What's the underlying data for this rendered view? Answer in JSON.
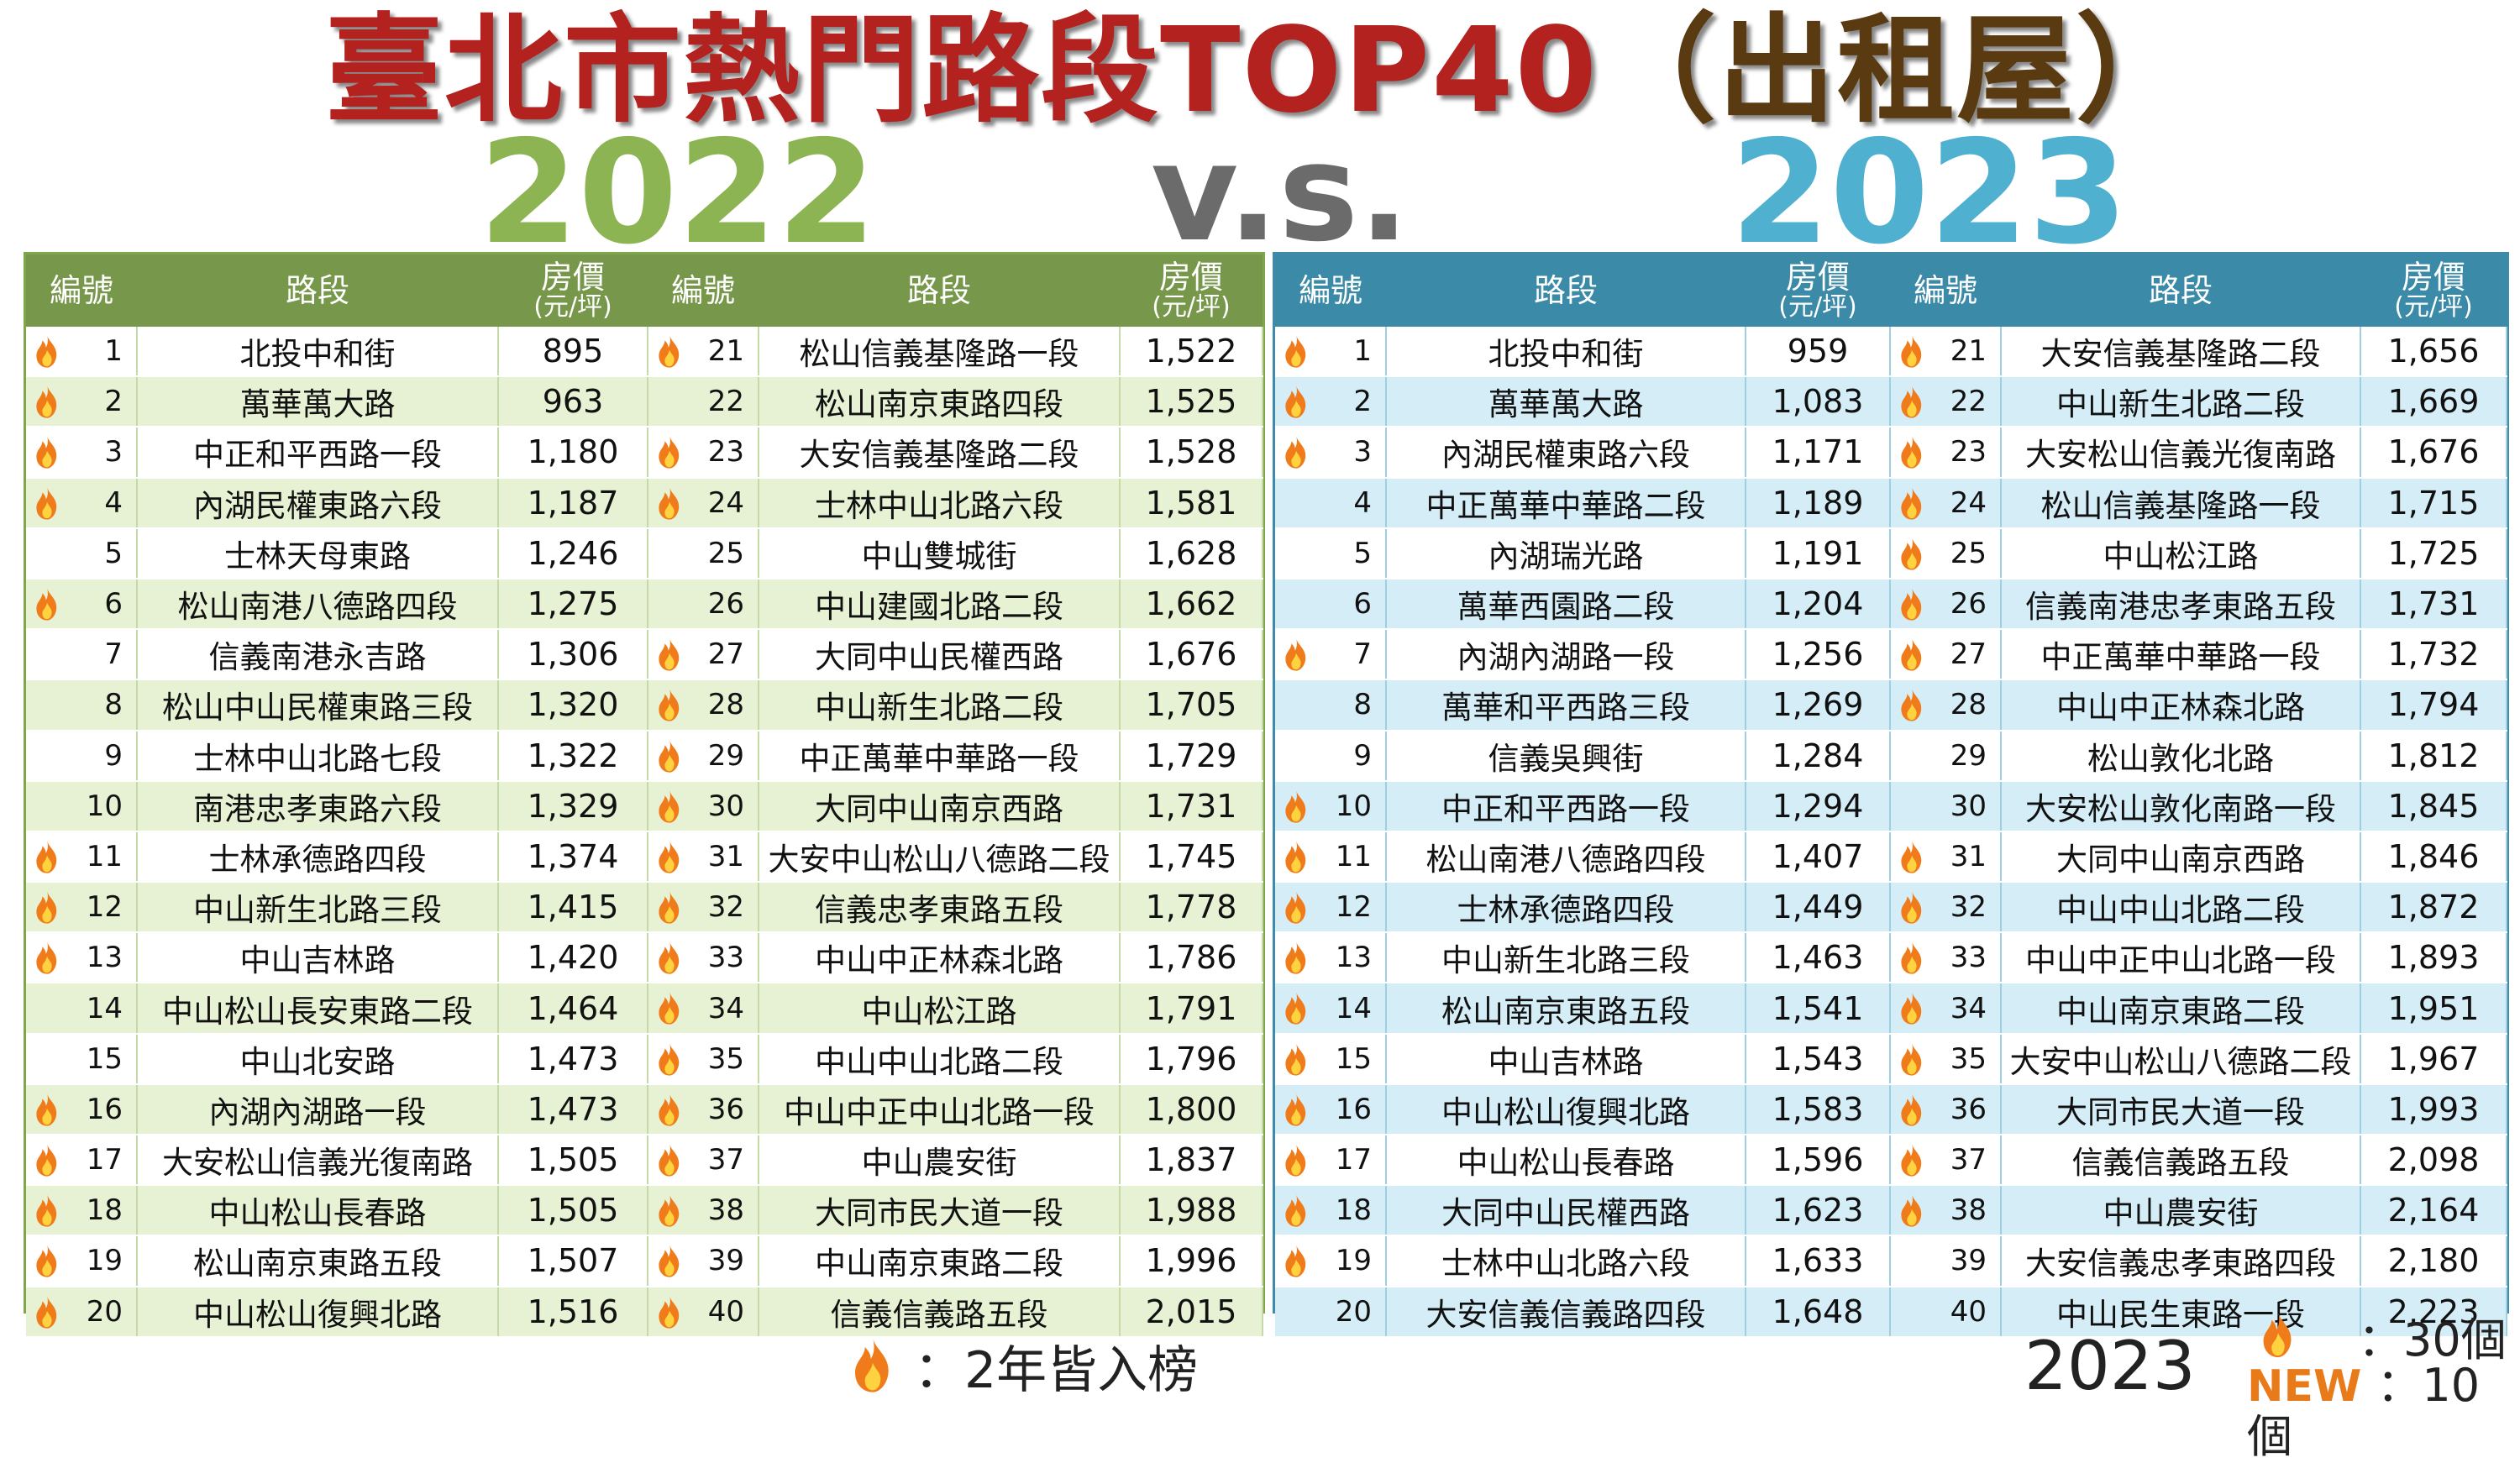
{
  "title": {
    "part1": "臺北市熱門路段TOP40",
    "part2": "（出租屋）"
  },
  "year_left": "2022",
  "vs": "v.s.",
  "year_right": "2023",
  "headers": {
    "id": "編號",
    "road": "路段",
    "price": "房價",
    "price_unit": "(元/坪)"
  },
  "table2022": [
    {
      "n": "1",
      "road": "北投中和街",
      "price": "895",
      "fire": true
    },
    {
      "n": "2",
      "road": "萬華萬大路",
      "price": "963",
      "fire": true
    },
    {
      "n": "3",
      "road": "中正和平西路一段",
      "price": "1,180",
      "fire": true
    },
    {
      "n": "4",
      "road": "內湖民權東路六段",
      "price": "1,187",
      "fire": true
    },
    {
      "n": "5",
      "road": "士林天母東路",
      "price": "1,246",
      "fire": false
    },
    {
      "n": "6",
      "road": "松山南港八德路四段",
      "price": "1,275",
      "fire": true
    },
    {
      "n": "7",
      "road": "信義南港永吉路",
      "price": "1,306",
      "fire": false
    },
    {
      "n": "8",
      "road": "松山中山民權東路三段",
      "price": "1,320",
      "fire": false
    },
    {
      "n": "9",
      "road": "士林中山北路七段",
      "price": "1,322",
      "fire": false
    },
    {
      "n": "10",
      "road": "南港忠孝東路六段",
      "price": "1,329",
      "fire": false
    },
    {
      "n": "11",
      "road": "士林承德路四段",
      "price": "1,374",
      "fire": true
    },
    {
      "n": "12",
      "road": "中山新生北路三段",
      "price": "1,415",
      "fire": true
    },
    {
      "n": "13",
      "road": "中山吉林路",
      "price": "1,420",
      "fire": true
    },
    {
      "n": "14",
      "road": "中山松山長安東路二段",
      "price": "1,464",
      "fire": false
    },
    {
      "n": "15",
      "road": "中山北安路",
      "price": "1,473",
      "fire": false
    },
    {
      "n": "16",
      "road": "內湖內湖路一段",
      "price": "1,473",
      "fire": true
    },
    {
      "n": "17",
      "road": "大安松山信義光復南路",
      "price": "1,505",
      "fire": true
    },
    {
      "n": "18",
      "road": "中山松山長春路",
      "price": "1,505",
      "fire": true
    },
    {
      "n": "19",
      "road": "松山南京東路五段",
      "price": "1,507",
      "fire": true
    },
    {
      "n": "20",
      "road": "中山松山復興北路",
      "price": "1,516",
      "fire": true
    },
    {
      "n": "21",
      "road": "松山信義基隆路一段",
      "price": "1,522",
      "fire": true
    },
    {
      "n": "22",
      "road": "松山南京東路四段",
      "price": "1,525",
      "fire": false
    },
    {
      "n": "23",
      "road": "大安信義基隆路二段",
      "price": "1,528",
      "fire": true
    },
    {
      "n": "24",
      "road": "士林中山北路六段",
      "price": "1,581",
      "fire": true
    },
    {
      "n": "25",
      "road": "中山雙城街",
      "price": "1,628",
      "fire": false
    },
    {
      "n": "26",
      "road": "中山建國北路二段",
      "price": "1,662",
      "fire": false
    },
    {
      "n": "27",
      "road": "大同中山民權西路",
      "price": "1,676",
      "fire": true
    },
    {
      "n": "28",
      "road": "中山新生北路二段",
      "price": "1,705",
      "fire": true
    },
    {
      "n": "29",
      "road": "中正萬華中華路一段",
      "price": "1,729",
      "fire": true
    },
    {
      "n": "30",
      "road": "大同中山南京西路",
      "price": "1,731",
      "fire": true
    },
    {
      "n": "31",
      "road": "大安中山松山八德路二段",
      "price": "1,745",
      "fire": true
    },
    {
      "n": "32",
      "road": "信義忠孝東路五段",
      "price": "1,778",
      "fire": true
    },
    {
      "n": "33",
      "road": "中山中正林森北路",
      "price": "1,786",
      "fire": true
    },
    {
      "n": "34",
      "road": "中山松江路",
      "price": "1,791",
      "fire": true
    },
    {
      "n": "35",
      "road": "中山中山北路二段",
      "price": "1,796",
      "fire": true
    },
    {
      "n": "36",
      "road": "中山中正中山北路一段",
      "price": "1,800",
      "fire": true
    },
    {
      "n": "37",
      "road": "中山農安街",
      "price": "1,837",
      "fire": true
    },
    {
      "n": "38",
      "road": "大同市民大道一段",
      "price": "1,988",
      "fire": true
    },
    {
      "n": "39",
      "road": "中山南京東路二段",
      "price": "1,996",
      "fire": true
    },
    {
      "n": "40",
      "road": "信義信義路五段",
      "price": "2,015",
      "fire": true
    }
  ],
  "table2023": [
    {
      "n": "1",
      "road": "北投中和街",
      "price": "959",
      "fire": true
    },
    {
      "n": "2",
      "road": "萬華萬大路",
      "price": "1,083",
      "fire": true
    },
    {
      "n": "3",
      "road": "內湖民權東路六段",
      "price": "1,171",
      "fire": true
    },
    {
      "n": "4",
      "road": "中正萬華中華路二段",
      "price": "1,189",
      "fire": false
    },
    {
      "n": "5",
      "road": "內湖瑞光路",
      "price": "1,191",
      "fire": false
    },
    {
      "n": "6",
      "road": "萬華西園路二段",
      "price": "1,204",
      "fire": false
    },
    {
      "n": "7",
      "road": "內湖內湖路一段",
      "price": "1,256",
      "fire": true
    },
    {
      "n": "8",
      "road": "萬華和平西路三段",
      "price": "1,269",
      "fire": false
    },
    {
      "n": "9",
      "road": "信義吳興街",
      "price": "1,284",
      "fire": false
    },
    {
      "n": "10",
      "road": "中正和平西路一段",
      "price": "1,294",
      "fire": true
    },
    {
      "n": "11",
      "road": "松山南港八德路四段",
      "price": "1,407",
      "fire": true
    },
    {
      "n": "12",
      "road": "士林承德路四段",
      "price": "1,449",
      "fire": true
    },
    {
      "n": "13",
      "road": "中山新生北路三段",
      "price": "1,463",
      "fire": true
    },
    {
      "n": "14",
      "road": "松山南京東路五段",
      "price": "1,541",
      "fire": true
    },
    {
      "n": "15",
      "road": "中山吉林路",
      "price": "1,543",
      "fire": true
    },
    {
      "n": "16",
      "road": "中山松山復興北路",
      "price": "1,583",
      "fire": true
    },
    {
      "n": "17",
      "road": "中山松山長春路",
      "price": "1,596",
      "fire": true
    },
    {
      "n": "18",
      "road": "大同中山民權西路",
      "price": "1,623",
      "fire": true
    },
    {
      "n": "19",
      "road": "士林中山北路六段",
      "price": "1,633",
      "fire": true
    },
    {
      "n": "20",
      "road": "大安信義信義路四段",
      "price": "1,648",
      "fire": false
    },
    {
      "n": "21",
      "road": "大安信義基隆路二段",
      "price": "1,656",
      "fire": true
    },
    {
      "n": "22",
      "road": "中山新生北路二段",
      "price": "1,669",
      "fire": true
    },
    {
      "n": "23",
      "road": "大安松山信義光復南路",
      "price": "1,676",
      "fire": true
    },
    {
      "n": "24",
      "road": "松山信義基隆路一段",
      "price": "1,715",
      "fire": true
    },
    {
      "n": "25",
      "road": "中山松江路",
      "price": "1,725",
      "fire": true
    },
    {
      "n": "26",
      "road": "信義南港忠孝東路五段",
      "price": "1,731",
      "fire": true
    },
    {
      "n": "27",
      "road": "中正萬華中華路一段",
      "price": "1,732",
      "fire": true
    },
    {
      "n": "28",
      "road": "中山中正林森北路",
      "price": "1,794",
      "fire": true
    },
    {
      "n": "29",
      "road": "松山敦化北路",
      "price": "1,812",
      "fire": false
    },
    {
      "n": "30",
      "road": "大安松山敦化南路一段",
      "price": "1,845",
      "fire": false
    },
    {
      "n": "31",
      "road": "大同中山南京西路",
      "price": "1,846",
      "fire": true
    },
    {
      "n": "32",
      "road": "中山中山北路二段",
      "price": "1,872",
      "fire": true
    },
    {
      "n": "33",
      "road": "中山中正中山北路一段",
      "price": "1,893",
      "fire": true
    },
    {
      "n": "34",
      "road": "中山南京東路二段",
      "price": "1,951",
      "fire": true
    },
    {
      "n": "35",
      "road": "大安中山松山八德路二段",
      "price": "1,967",
      "fire": true
    },
    {
      "n": "36",
      "road": "大同市民大道一段",
      "price": "1,993",
      "fire": true
    },
    {
      "n": "37",
      "road": "信義信義路五段",
      "price": "2,098",
      "fire": true
    },
    {
      "n": "38",
      "road": "中山農安街",
      "price": "2,164",
      "fire": true
    },
    {
      "n": "39",
      "road": "大安信義忠孝東路四段",
      "price": "2,180",
      "fire": false
    },
    {
      "n": "40",
      "road": "中山民生東路一段",
      "price": "2,223",
      "fire": false
    }
  ],
  "legend": {
    "text": "：2年皆入榜",
    "icon": "fire-icon"
  },
  "summary": {
    "year": "2023",
    "fire_count": "：30個",
    "new_label": "NEW",
    "new_count": "：10個"
  },
  "colors": {
    "green": "#8db452",
    "blue": "#4fb0cf",
    "red": "#b3221e",
    "new_orange": "#e87a1a"
  }
}
